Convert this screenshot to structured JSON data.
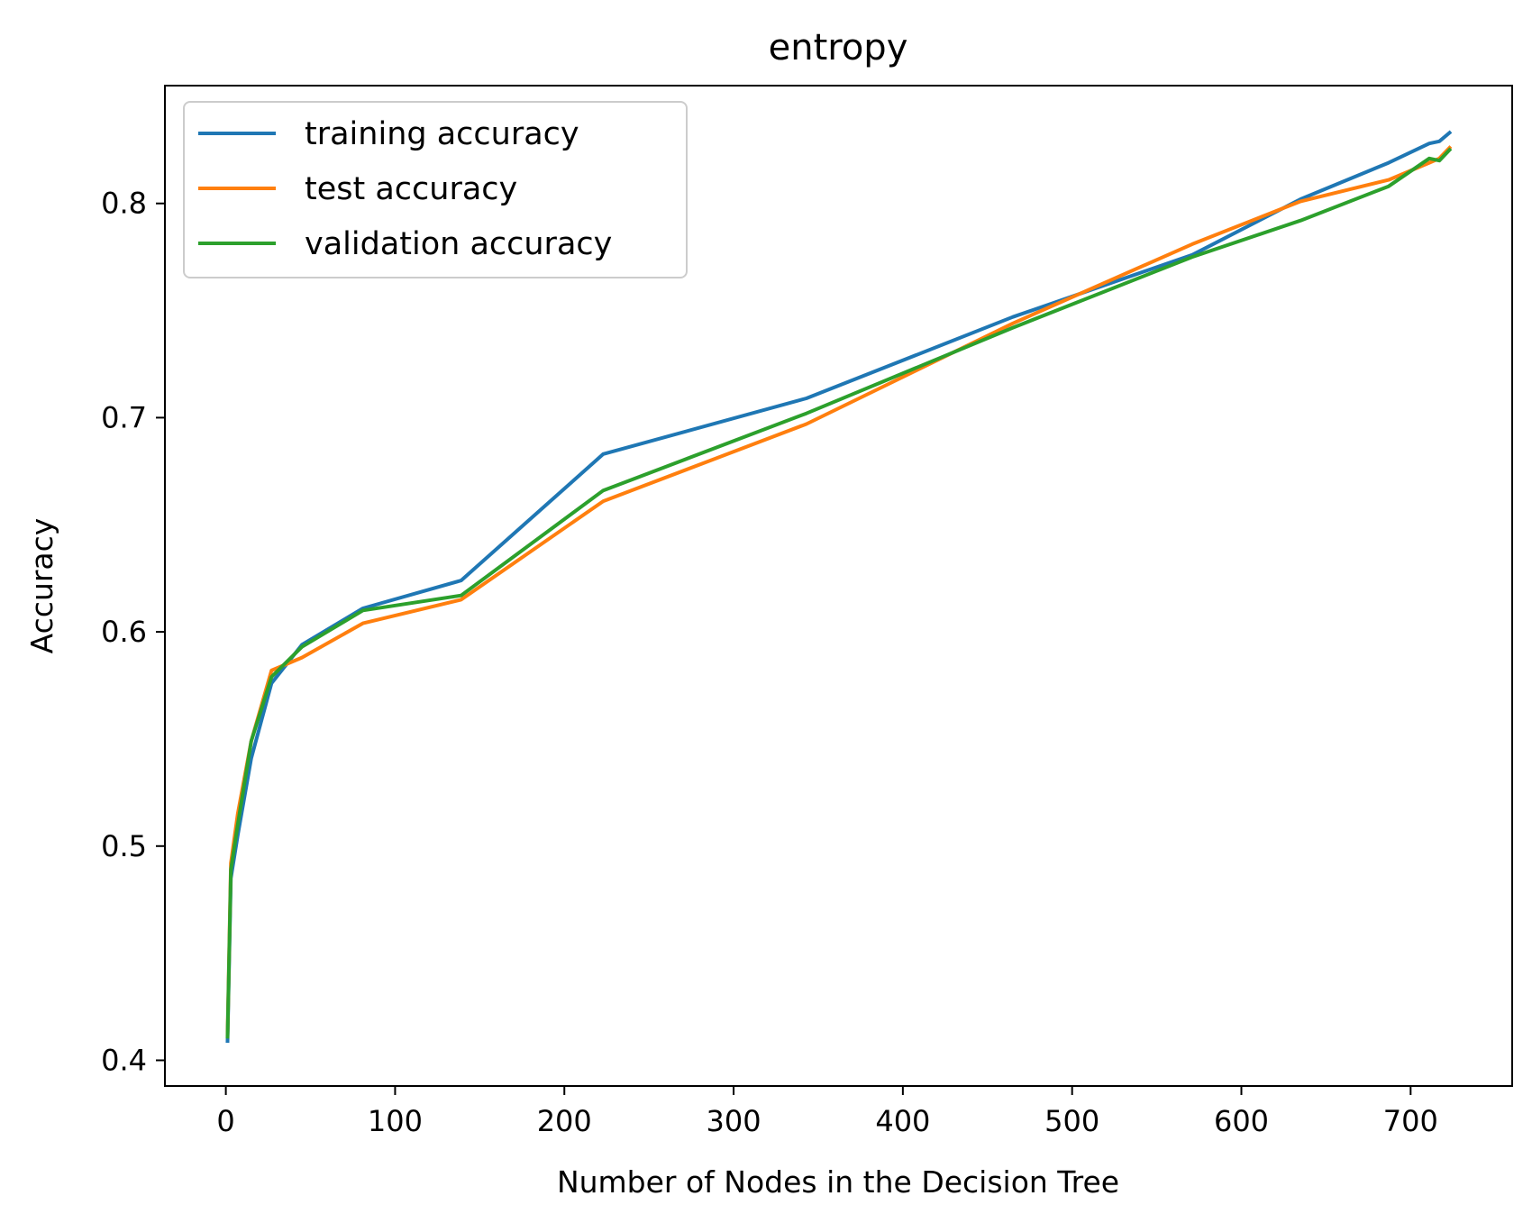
{
  "chart_data": {
    "type": "line",
    "title": "entropy",
    "xlabel": "Number of Nodes in the Decision Tree",
    "ylabel": "Accuracy",
    "xlim": [
      -36,
      760
    ],
    "ylim": [
      0.388,
      0.855
    ],
    "xticks": [
      0,
      100,
      200,
      300,
      400,
      500,
      600,
      700
    ],
    "yticks": [
      0.4,
      0.5,
      0.6,
      0.7,
      0.8
    ],
    "grid": false,
    "legend": "upper-left",
    "series": [
      {
        "name": "training accuracy",
        "color": "#1f77b4",
        "x": [
          1,
          3,
          7,
          15,
          27,
          45,
          81,
          139,
          223,
          343,
          465,
          571,
          635,
          687,
          711,
          717,
          723
        ],
        "y": [
          0.409,
          0.485,
          0.505,
          0.541,
          0.576,
          0.594,
          0.611,
          0.624,
          0.683,
          0.709,
          0.747,
          0.776,
          0.802,
          0.819,
          0.828,
          0.829,
          0.833
        ]
      },
      {
        "name": "test accuracy",
        "color": "#ff7f0e",
        "x": [
          1,
          3,
          7,
          15,
          27,
          45,
          81,
          139,
          223,
          343,
          465,
          571,
          635,
          687,
          711,
          717,
          723
        ],
        "y": [
          0.412,
          0.492,
          0.515,
          0.549,
          0.582,
          0.588,
          0.604,
          0.615,
          0.661,
          0.697,
          0.744,
          0.781,
          0.801,
          0.811,
          0.819,
          0.821,
          0.826
        ]
      },
      {
        "name": "validation accuracy",
        "color": "#2ca02c",
        "x": [
          1,
          3,
          7,
          15,
          27,
          45,
          81,
          139,
          223,
          343,
          465,
          571,
          635,
          687,
          711,
          717,
          723
        ],
        "y": [
          0.411,
          0.489,
          0.51,
          0.549,
          0.579,
          0.593,
          0.61,
          0.617,
          0.666,
          0.702,
          0.742,
          0.775,
          0.792,
          0.808,
          0.821,
          0.82,
          0.825
        ]
      }
    ]
  }
}
